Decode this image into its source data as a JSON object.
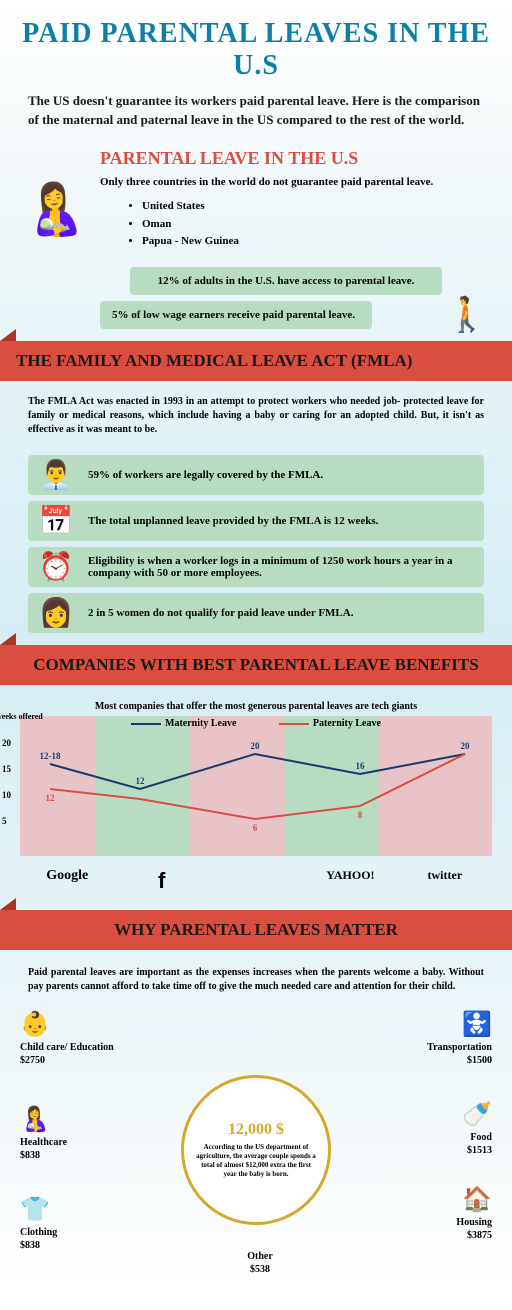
{
  "title": "PAID PARENTAL LEAVES IN THE U.S",
  "subtitle": "The US doesn't guarantee its workers paid parental leave. Here is the comparison of the maternal and paternal leave in the US compared to the rest of the world.",
  "section1": {
    "header": "PARENTAL LEAVE IN THE U.S",
    "intro": "Only three countries in the world do not guarantee paid parental leave.",
    "countries": [
      "United States",
      "Oman",
      "Papua - New Guinea"
    ],
    "stat1": "12% of adults in the U.S. have access to parental leave.",
    "stat2": "5% of low wage earners receive paid parental leave."
  },
  "fmla": {
    "banner": "THE FAMILY AND MEDICAL LEAVE ACT (FMLA)",
    "intro": "The FMLA Act was enacted in 1993 in an attempt to protect workers who needed job- protected leave for family or medical reasons, which include having a baby or caring for an adopted child. But, it isn't as effective as it was meant to be.",
    "stats": [
      "59% of workers are legally covered by the FMLA.",
      "The total unplanned leave provided by the FMLA is 12 weeks.",
      "Eligibility is when a worker logs in a minimum of 1250 work hours a year in a company with 50 or more employees.",
      "2 in 5 women do not qualify for paid leave under FMLA."
    ],
    "icons": [
      "👨‍💼",
      "📅",
      "⏰",
      "👩"
    ]
  },
  "companies": {
    "banner": "COMPANIES WITH BEST PARENTAL LEAVE BENEFITS",
    "intro": "Most companies that offer the most generous parental leaves are tech giants",
    "legend_maternity": "Maternity Leave",
    "legend_paternity": "Paternity Leave",
    "y_label": "weeks offered",
    "y_ticks": [
      "20",
      "15",
      "10",
      "5"
    ],
    "names": [
      "Google",
      "f",
      "",
      "YAHOO!",
      "twitter"
    ],
    "maternity": [
      "12-18",
      "12",
      "20",
      "16",
      "20"
    ],
    "paternity": [
      "12",
      "",
      "6",
      "8",
      ""
    ],
    "maternity_color": "#1a3a6e",
    "paternity_color": "#d94e3f",
    "maternity_points": [
      [
        30,
        30
      ],
      [
        120,
        55
      ],
      [
        235,
        20
      ],
      [
        340,
        40
      ],
      [
        445,
        20
      ]
    ],
    "paternity_points": [
      [
        30,
        55
      ],
      [
        120,
        65
      ],
      [
        235,
        85
      ],
      [
        340,
        72
      ],
      [
        445,
        20
      ]
    ]
  },
  "why": {
    "banner": "WHY PARENTAL LEAVES MATTER",
    "intro": "Paid parental leaves are important as the expenses increases when the parents welcome a baby. Without pay parents cannot afford to take time off to give the much needed care and attention for their child.",
    "center_amount": "12,000 $",
    "center_text": "According to the US department of agriculture, the average couple spends a total of almost $12,000 extra the first year the baby is born.",
    "expenses": [
      {
        "label": "Child care/ Education",
        "amount": "$2750",
        "icon": "👶",
        "pos": "left:0;top:0"
      },
      {
        "label": "Healthcare",
        "amount": "$838",
        "icon": "🤱",
        "pos": "left:0;top:95px"
      },
      {
        "label": "Clothing",
        "amount": "$838",
        "icon": "👕",
        "pos": "left:0;top:185px"
      },
      {
        "label": "Transportation",
        "amount": "$1500",
        "icon": "🚼",
        "pos": "right:0;top:0;text-align:right"
      },
      {
        "label": "Food",
        "amount": "$1513",
        "icon": "🍼",
        "pos": "right:0;top:90px;text-align:right"
      },
      {
        "label": "Housing",
        "amount": "$3875",
        "icon": "🏠",
        "pos": "right:0;top:175px;text-align:right"
      },
      {
        "label": "Other",
        "amount": "$538",
        "icon": "",
        "pos": "left:185px;top:240px;text-align:center"
      }
    ]
  }
}
